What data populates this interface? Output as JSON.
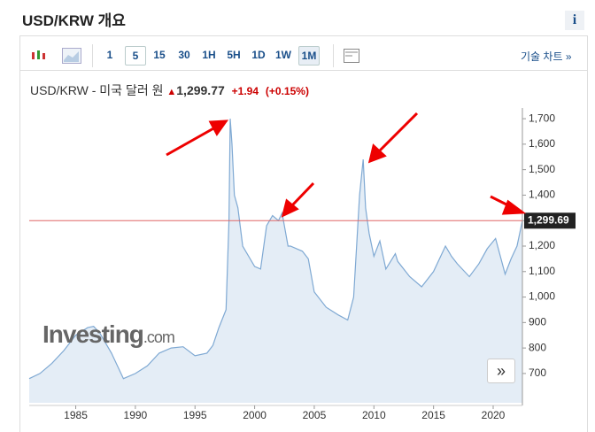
{
  "header": {
    "title": "USD/KRW 개요",
    "info": "i"
  },
  "toolbar": {
    "intervals": [
      "1",
      "5",
      "15",
      "30",
      "1H",
      "5H",
      "1D",
      "1W",
      "1M"
    ],
    "active": "1M",
    "tech_chart": "기술 차트"
  },
  "quote": {
    "name": "USD/KRW - 미국 달러 원",
    "price": "1,299.77",
    "change": "+1.94",
    "change_pct": "(+0.15%)"
  },
  "watermark": {
    "brand": "Investing",
    "suffix": ".com"
  },
  "chart_data": {
    "type": "area",
    "color": "#7fa9d3",
    "fill": "#e4edf6",
    "x": [
      1981.1,
      1982,
      1983,
      1984,
      1985,
      1986,
      1986.5,
      1987,
      1988,
      1989,
      1990,
      1991,
      1992,
      1993,
      1994,
      1995,
      1996,
      1996.5,
      1997,
      1997.6,
      1997.85,
      1997.95,
      1998.1,
      1998.3,
      1998.6,
      1999,
      2000,
      2000.5,
      2001,
      2001.5,
      2002,
      2002.3,
      2002.8,
      2003,
      2004,
      2004.5,
      2005,
      2006,
      2007,
      2007.8,
      2008.3,
      2008.8,
      2009.1,
      2009.3,
      2009.6,
      2010,
      2010.5,
      2011,
      2011.8,
      2012,
      2013,
      2014,
      2015,
      2016,
      2016.5,
      2017,
      2018,
      2018.8,
      2019.5,
      2020.2,
      2021,
      2021.5,
      2022,
      2022.45
    ],
    "values": [
      680,
      700,
      740,
      790,
      850,
      880,
      885,
      860,
      780,
      680,
      700,
      730,
      780,
      800,
      805,
      770,
      780,
      810,
      880,
      950,
      1300,
      1700,
      1600,
      1400,
      1350,
      1200,
      1120,
      1110,
      1280,
      1320,
      1300,
      1330,
      1200,
      1200,
      1180,
      1150,
      1020,
      960,
      930,
      910,
      1000,
      1400,
      1540,
      1350,
      1250,
      1160,
      1220,
      1110,
      1170,
      1140,
      1080,
      1040,
      1100,
      1200,
      1160,
      1130,
      1080,
      1130,
      1190,
      1230,
      1090,
      1150,
      1200,
      1300
    ],
    "xlim": [
      1981.1,
      2022.45
    ],
    "ylim": [
      585,
      1742
    ],
    "xticks": [
      1985,
      1990,
      1995,
      2000,
      2005,
      2010,
      2015,
      2020
    ],
    "yticks": [
      700,
      800,
      900,
      {
        "value": 1000,
        "label": "1,000"
      },
      {
        "value": 1100,
        "label": "1,100"
      },
      {
        "value": 1200,
        "label": "1,200"
      },
      {
        "value": 1300,
        "label": "1,300"
      },
      {
        "value": 1400,
        "label": "1,400"
      },
      {
        "value": 1500,
        "label": "1,500"
      },
      {
        "value": 1600,
        "label": "1,600"
      },
      {
        "value": 1700,
        "label": "1,700"
      }
    ],
    "last": {
      "value": 1299.69,
      "label": "1,299.69"
    },
    "last_color": "#e06666"
  }
}
